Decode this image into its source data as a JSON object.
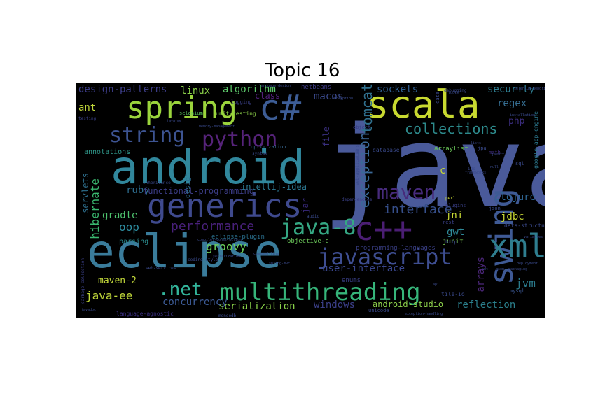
{
  "title": "Topic 16",
  "words": [
    {
      "text": "java",
      "color": "#4a5a9a"
    },
    {
      "text": "android",
      "color": "#31879c"
    },
    {
      "text": "eclipse",
      "color": "#3a7c9b"
    },
    {
      "text": "scala",
      "color": "#c8d930"
    },
    {
      "text": "spring",
      "color": "#9bd43c"
    },
    {
      "text": "c#",
      "color": "#3d5d96"
    },
    {
      "text": "generics",
      "color": "#3f4a8e"
    },
    {
      "text": "multithreading",
      "color": "#36b57a"
    },
    {
      "text": "swing",
      "color": "#3f5a95"
    },
    {
      "text": "xml",
      "color": "#2f7e8f"
    },
    {
      "text": "c++",
      "color": "#4b1e74"
    },
    {
      "text": "javascript",
      "color": "#3e4e91"
    },
    {
      "text": "java-8",
      "color": "#35a783"
    },
    {
      "text": "python",
      "color": "#56237a"
    },
    {
      "text": "string",
      "color": "#3d5492"
    },
    {
      "text": "maven",
      "color": "#472b7c"
    },
    {
      "text": "collections",
      "color": "#2d8a8c"
    },
    {
      "text": ".net",
      "color": "#33b59b"
    },
    {
      "text": "exception",
      "color": "#3a6897"
    },
    {
      "text": "tomcat",
      "color": "#30708e"
    },
    {
      "text": "interface",
      "color": "#364f8b"
    },
    {
      "text": "performance",
      "color": "#48207a"
    },
    {
      "text": "groovy",
      "color": "#6ccf5a"
    },
    {
      "text": "hibernate",
      "color": "#3ab86f"
    },
    {
      "text": "oop",
      "color": "#2e8da0"
    },
    {
      "text": "gradle",
      "color": "#4ec26e"
    },
    {
      "text": "ruby",
      "color": "#2e6e90"
    },
    {
      "text": "functional-programming",
      "color": "#3b3c85"
    },
    {
      "text": "intellij-idea",
      "color": "#2d7891"
    },
    {
      "text": "algorithm",
      "color": "#5cc86a"
    },
    {
      "text": "design-patterns",
      "color": "#3b3c86"
    },
    {
      "text": "linux",
      "color": "#8ad04a"
    },
    {
      "text": "macos",
      "color": "#3b4a8c"
    },
    {
      "text": "sockets",
      "color": "#2f5f92"
    },
    {
      "text": "security",
      "color": "#2f7f93"
    },
    {
      "text": "regex",
      "color": "#366e92"
    },
    {
      "text": "ant",
      "color": "#c2d83a"
    },
    {
      "text": "php",
      "color": "#3b2d7e"
    },
    {
      "text": "clojure",
      "color": "#2f6796"
    },
    {
      "text": "jdbc",
      "color": "#c8d935"
    },
    {
      "text": "jni",
      "color": "#c8d935"
    },
    {
      "text": "gwt",
      "color": "#2f8a99"
    },
    {
      "text": "jvm",
      "color": "#2a7a8c"
    },
    {
      "text": "arrays",
      "color": "#4b2679"
    },
    {
      "text": "reflection",
      "color": "#2b7f8c"
    },
    {
      "text": "windows",
      "color": "#3b3f88"
    },
    {
      "text": "serialization",
      "color": "#8ad24a"
    },
    {
      "text": "concurrency",
      "color": "#3d5c98"
    },
    {
      "text": "java-ee",
      "color": "#c0d83a"
    },
    {
      "text": "maven-2",
      "color": "#c2d83a"
    },
    {
      "text": "user-interface",
      "color": "#39468c"
    },
    {
      "text": "android-studio",
      "color": "#8fd34c"
    },
    {
      "text": "servlets",
      "color": "#2e6f8e"
    },
    {
      "text": "annotations",
      "color": "#2f9588"
    },
    {
      "text": "class",
      "color": "#50207a"
    },
    {
      "text": "file",
      "color": "#3a2f80"
    },
    {
      "text": "jar",
      "color": "#3a2a7e"
    },
    {
      "text": "c",
      "color": "#c8d935"
    },
    {
      "text": "design",
      "color": "#2d6a8e"
    },
    {
      "text": "parsing",
      "color": "#2a8a8c"
    },
    {
      "text": "eclipse-plugin",
      "color": "#2a6f8d"
    },
    {
      "text": "programming-languages",
      "color": "#3a3f86"
    },
    {
      "text": "objective-c",
      "color": "#6cc95a"
    },
    {
      "text": "junit",
      "color": "#7bcd52"
    },
    {
      "text": "enums",
      "color": "#3a3f86"
    },
    {
      "text": "netbeans",
      "color": "#3e3c86"
    },
    {
      "text": "unit-testing",
      "color": "#8cd048"
    },
    {
      "text": "selenium",
      "color": "#5bc560"
    },
    {
      "text": "optimization",
      "color": "#3a6b96"
    },
    {
      "text": "database",
      "color": "#3a4a8c"
    },
    {
      "text": "arraylist",
      "color": "#6cc95a"
    },
    {
      "text": "google-app-engine",
      "color": "#2c7a90"
    },
    {
      "text": "data-structures",
      "color": "#3a4a8c"
    },
    {
      "text": "math",
      "color": "#3f2e80"
    },
    {
      "text": "sql",
      "color": "#3a4a8c"
    },
    {
      "text": "mysql",
      "color": "#3a5692"
    },
    {
      "text": "rest",
      "color": "#3a3f86"
    },
    {
      "text": "http",
      "color": "#3a4a8c"
    },
    {
      "text": "tile-io",
      "color": "#3a4a8c"
    },
    {
      "text": "unicode",
      "color": "#3a4a8c"
    },
    {
      "text": "json",
      "color": "#3a4a8c"
    },
    {
      "text": "plugins",
      "color": "#3a3f86"
    },
    {
      "text": "object",
      "color": "#3a3f86"
    },
    {
      "text": "date",
      "color": "#3a4a8c"
    },
    {
      "text": "jpa",
      "color": "#3a4a8c"
    },
    {
      "text": "ide",
      "color": "#3a4a8c"
    },
    {
      "text": "perl",
      "color": "#c8d935"
    },
    {
      "text": "dependencies",
      "color": "#3a3f86"
    },
    {
      "text": "syntax",
      "color": "#3a4a8c"
    },
    {
      "text": "inheritance",
      "color": "#3a4a8c"
    },
    {
      "text": "logging",
      "color": "#3a3f86"
    },
    {
      "text": "audio",
      "color": "#3a4a8c"
    },
    {
      "text": "debugging",
      "color": "#3a4a8c"
    },
    {
      "text": "testing",
      "color": "#3a3f86"
    },
    {
      "text": "memory-management",
      "color": "#3a4a8c"
    },
    {
      "text": "garbage-collection",
      "color": "#3a3f86"
    },
    {
      "text": "web-services",
      "color": "#3a4a8c"
    },
    {
      "text": "command-line",
      "color": "#3a4a8c"
    },
    {
      "text": "compiler-construction",
      "color": "#3a4a8c"
    },
    {
      "text": "language-agnostic",
      "color": "#3a2f80"
    },
    {
      "text": "mongodb",
      "color": "#3a4a8c"
    },
    {
      "text": "javadoc",
      "color": "#3a4a8c"
    },
    {
      "text": "api",
      "color": "#3a4a8c"
    },
    {
      "text": "exception-handling",
      "color": "#3a4a8c"
    },
    {
      "text": "deployment",
      "color": "#3a4a8c"
    },
    {
      "text": "packaging",
      "color": "#3a4a8c"
    },
    {
      "text": "language-design",
      "color": "#3a4a8c"
    },
    {
      "text": "encryption",
      "color": "#3a4a8c"
    },
    {
      "text": "serialization",
      "color": "#3a4a8c"
    },
    {
      "text": "web-applications",
      "color": "#3a4a8c"
    },
    {
      "text": "coding-style",
      "color": "#3a4a8c"
    },
    {
      "text": "frameworks",
      "color": "#3a4a8c"
    },
    {
      "text": "spring-mvc",
      "color": "#3a4a8c"
    },
    {
      "text": "tools",
      "color": "#3a4a8c"
    },
    {
      "text": "variables",
      "color": "#3a4a8c"
    },
    {
      "text": "installation",
      "color": "#3a4a8c"
    },
    {
      "text": "selenium-webdriver",
      "color": "#3a4a8c"
    },
    {
      "text": "java-me",
      "color": "#3a4a8c"
    },
    {
      "text": "jsp",
      "color": "#3a4a8c"
    },
    {
      "text": "lists",
      "color": "#3a4a8c"
    },
    {
      "text": "null",
      "color": "#3a4a8c"
    },
    {
      "text": "swt",
      "color": "#3a4a8c"
    },
    {
      "text": "gson",
      "color": "#3a4a8c"
    },
    {
      "text": "javafx",
      "color": "#3a4a8c"
    }
  ]
}
